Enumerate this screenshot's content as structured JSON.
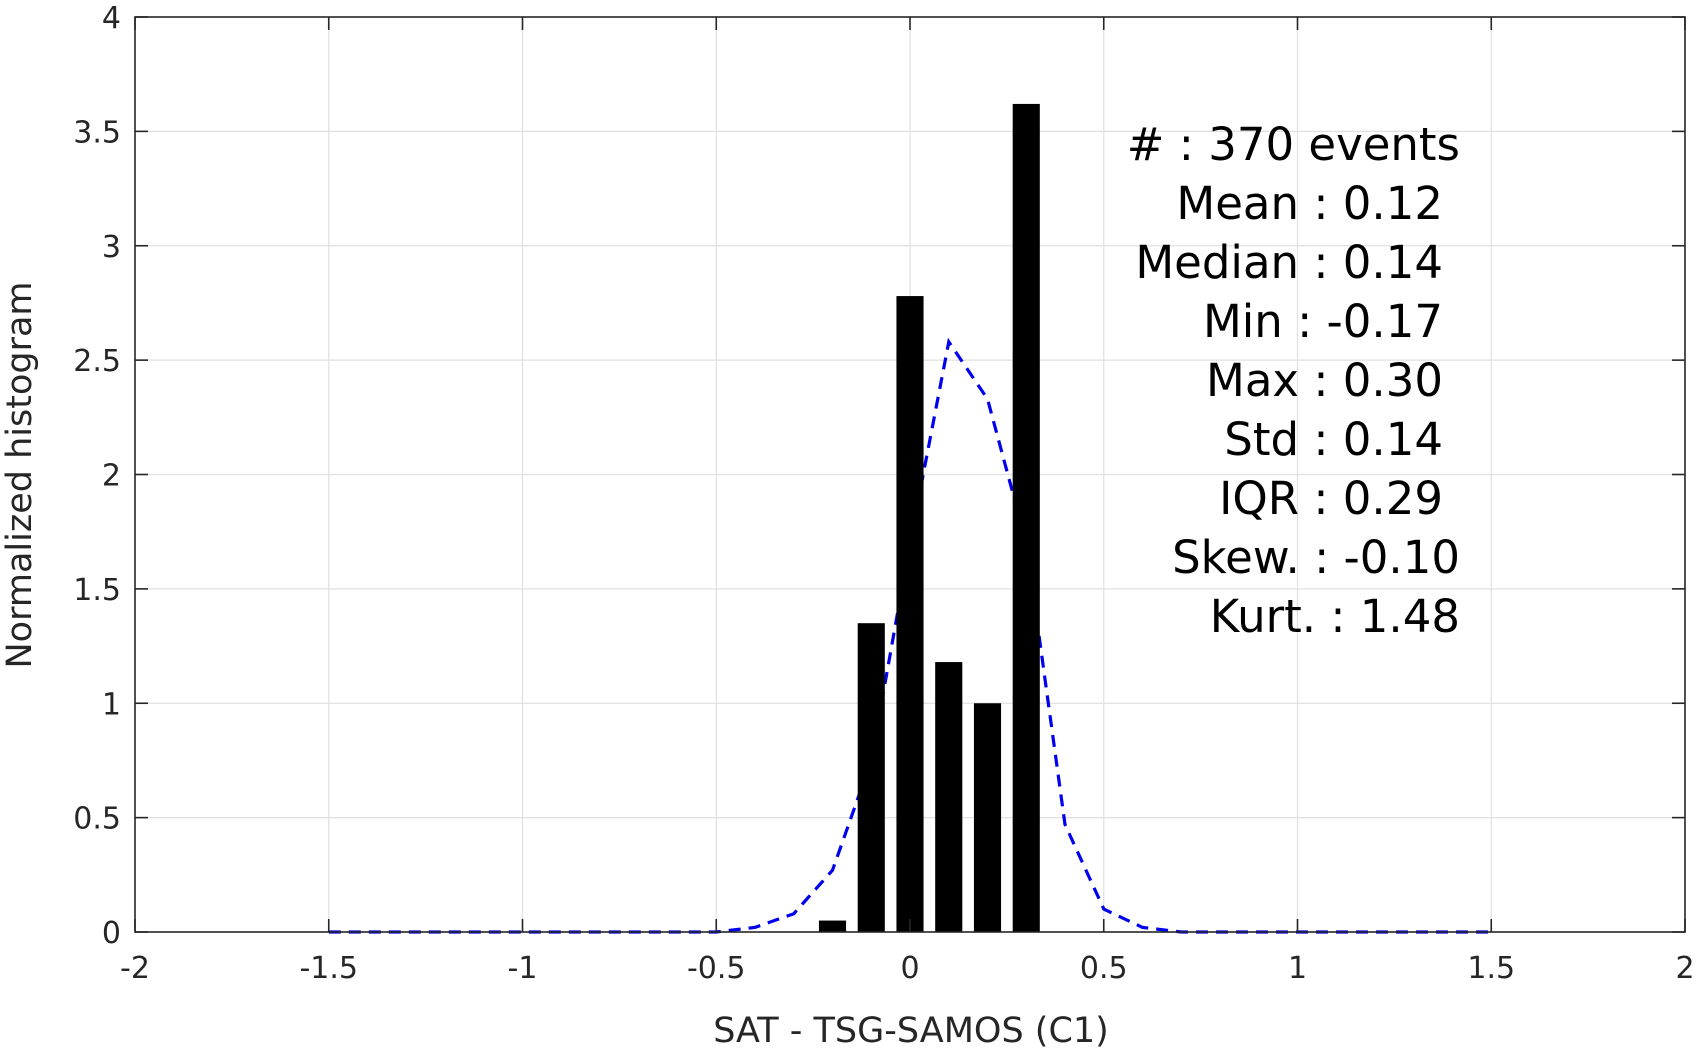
{
  "chart_data": {
    "type": "bar",
    "title": "",
    "xlabel": "SAT - TSG-SAMOS (C1)",
    "ylabel": "Normalized histogram",
    "xlim": [
      -2,
      2
    ],
    "ylim": [
      0,
      4
    ],
    "grid": true,
    "x_ticks": [
      -2,
      -1.5,
      -1,
      -0.5,
      0,
      0.5,
      1,
      1.5,
      2
    ],
    "x_tick_labels": [
      "-2",
      "-1.5",
      "-1",
      "-0.5",
      "0",
      "0.5",
      "1",
      "1.5",
      "2"
    ],
    "y_ticks": [
      0,
      0.5,
      1,
      1.5,
      2,
      2.5,
      3,
      3.5,
      4
    ],
    "y_tick_labels": [
      "0",
      "0.5",
      "1",
      "1.5",
      "2",
      "2.5",
      "3",
      "3.5",
      "4"
    ],
    "bar_width": 0.07,
    "bars": {
      "color": "#000000",
      "x": [
        -0.2,
        -0.1,
        0.0,
        0.1,
        0.2,
        0.3
      ],
      "values": [
        0.05,
        1.35,
        2.78,
        1.18,
        1.0,
        3.62
      ]
    },
    "fit_curve": {
      "color": "#0000ee",
      "style": "dashed",
      "x": [
        -1.5,
        -1.4,
        -1.3,
        -1.2,
        -1.1,
        -1.0,
        -0.9,
        -0.8,
        -0.7,
        -0.6,
        -0.5,
        -0.4,
        -0.3,
        -0.2,
        -0.1,
        0.0,
        0.1,
        0.2,
        0.3,
        0.4,
        0.5,
        0.6,
        0.7,
        0.8,
        0.9,
        1.0,
        1.1,
        1.2,
        1.3,
        1.4,
        1.5
      ],
      "y": [
        0,
        0,
        0,
        0,
        0,
        0,
        0,
        0,
        0,
        0,
        0.0,
        0.02,
        0.08,
        0.27,
        0.75,
        1.7,
        2.58,
        2.33,
        1.7,
        0.47,
        0.1,
        0.02,
        0.0,
        0,
        0,
        0,
        0,
        0,
        0,
        0,
        0
      ]
    },
    "annotations": [
      "#  : 370 events",
      "Mean : 0.12",
      "Median : 0.14",
      "Min : -0.17",
      "Max : 0.30",
      "Std : 0.14",
      "IQR : 0.29",
      "Skew. : -0.10",
      "Kurt. : 1.48"
    ]
  }
}
